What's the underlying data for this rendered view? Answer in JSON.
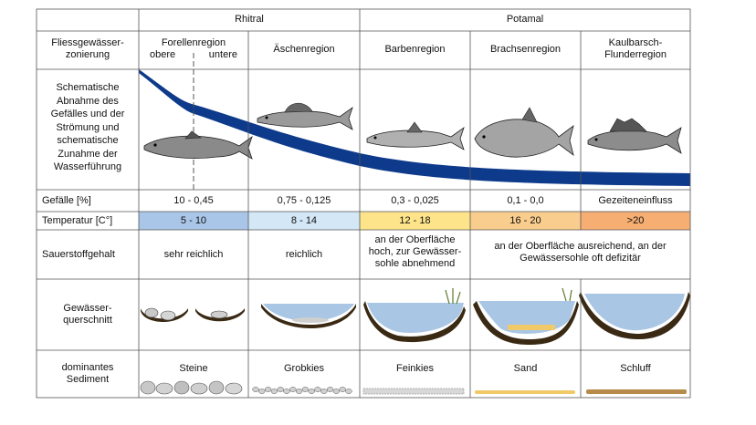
{
  "header": {
    "rhitral": "Rhitral",
    "potamal": "Potamal"
  },
  "row_labels": {
    "zonierung": [
      "Fliessgewässer-",
      "zonierung"
    ],
    "schema": [
      "Schematische",
      "Abnahme des",
      "Gefälles und der",
      "Strömung und",
      "schematische",
      "Zunahme der",
      "Wasserführung"
    ],
    "gefaelle": "Gefälle [%]",
    "temperatur": "Temperatur [C°]",
    "sauerstoff": "Sauerstoffgehalt",
    "querschnitt": [
      "Gewässer-",
      "querschnitt"
    ],
    "sediment": [
      "dominantes",
      "Sediment"
    ]
  },
  "regions": [
    {
      "name": "Forellenregion",
      "sub_a": "obere",
      "sub_b": "untere",
      "gefaelle": "10 - 0,45",
      "temperatur": "5 - 10",
      "temp_color": "#a9c6e8",
      "sediment": "Steine"
    },
    {
      "name": "Äschenregion",
      "gefaelle": "0,75 - 0,125",
      "temperatur": "8 - 14",
      "temp_color": "#d3e7f6",
      "sediment": "Grobkies"
    },
    {
      "name": "Barbenregion",
      "gefaelle": "0,3 - 0,025",
      "temperatur": "12 - 18",
      "temp_color": "#fde48a",
      "sediment": "Feinkies"
    },
    {
      "name": "Brachsenregion",
      "gefaelle": "0,1 - 0,0",
      "temperatur": "16 - 20",
      "temp_color": "#f9cd8e",
      "sediment": "Sand"
    },
    {
      "name": [
        "Kaulbarsch-",
        "Flunderregion"
      ],
      "gefaelle": "Gezeiteneinfluss",
      "temperatur": ">20",
      "temp_color": "#f6ae73",
      "sediment": "Schluff"
    }
  ],
  "sauerstoff": {
    "col1": "sehr reichlich",
    "col2": "reichlich",
    "col3": [
      "an der Oberfläche",
      "hoch, zur Gewässer-",
      "sohle abnehmend"
    ],
    "col45": [
      "an der Oberfläche ausreichend, an der",
      "Gewässersohle oft defizitär"
    ]
  },
  "colors": {
    "river_band": "#0d3a8a",
    "water": "#a9c6e4",
    "bed": "#3a2a14",
    "sand": "#f0c969",
    "silt": "#b58a4a",
    "grid": "#555555"
  }
}
